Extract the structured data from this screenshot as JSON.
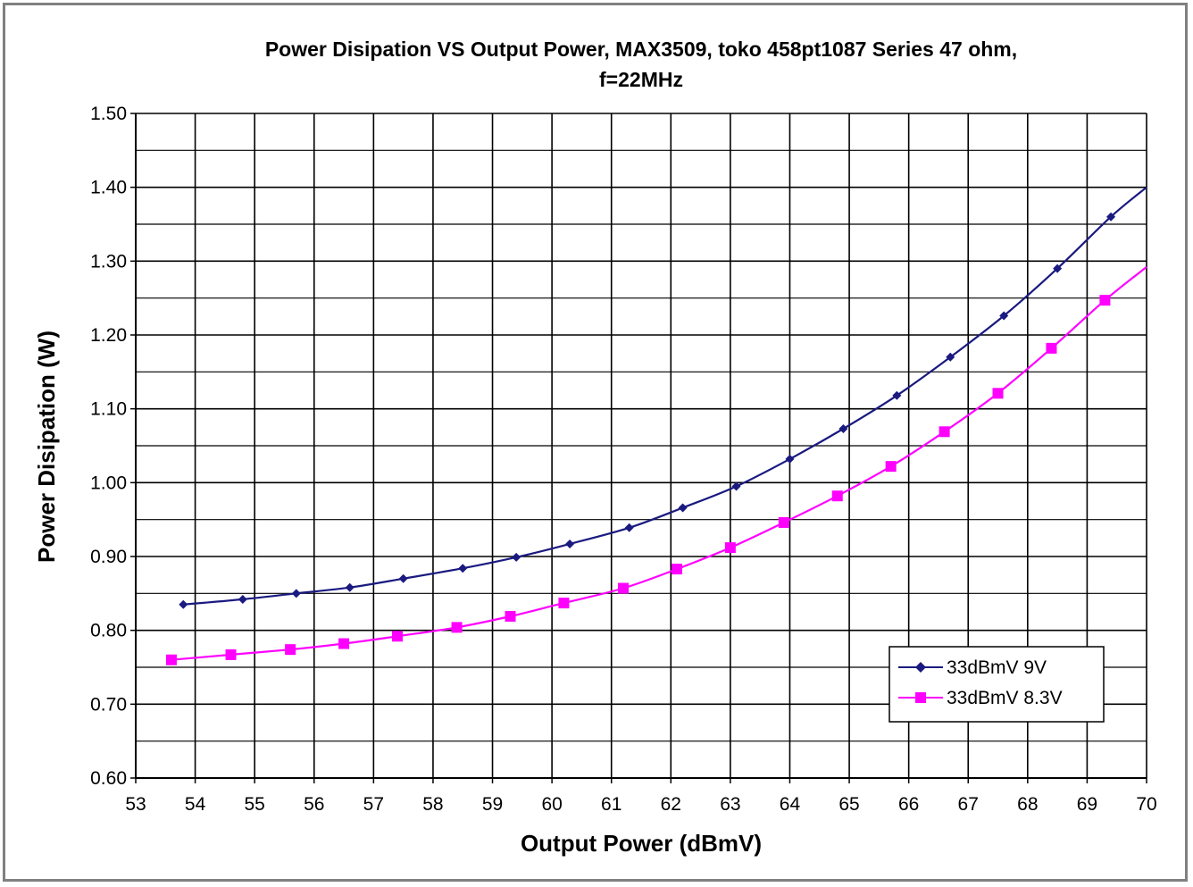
{
  "chart_data": {
    "type": "line",
    "title_line1": "Power Disipation VS Output Power, MAX3509, toko 458pt1087 Series 47 ohm,",
    "title_line2": "f=22MHz",
    "xlabel": "Output Power (dBmV)",
    "ylabel": "Power Disipation (W)",
    "xlim": [
      53,
      70
    ],
    "ylim": [
      0.6,
      1.5
    ],
    "x_ticks": [
      "53",
      "54",
      "55",
      "56",
      "57",
      "58",
      "59",
      "60",
      "61",
      "62",
      "63",
      "64",
      "65",
      "66",
      "67",
      "68",
      "69",
      "70"
    ],
    "y_ticks": [
      "0.60",
      "0.70",
      "0.80",
      "0.90",
      "1.00",
      "1.10",
      "1.20",
      "1.30",
      "1.40",
      "1.50"
    ],
    "grid": true,
    "legend_position": "bottom-right",
    "series": [
      {
        "name": "33dBmV 9V",
        "color": "#1a1a80",
        "marker": "diamond",
        "x": [
          53.8,
          54.8,
          55.7,
          56.6,
          57.5,
          58.5,
          59.4,
          60.3,
          61.3,
          62.2,
          63.1,
          64.0,
          64.9,
          65.8,
          66.7,
          67.6,
          68.5,
          69.4,
          70.0
        ],
        "y": [
          0.835,
          0.842,
          0.85,
          0.858,
          0.87,
          0.884,
          0.899,
          0.917,
          0.939,
          0.966,
          0.995,
          1.032,
          1.073,
          1.118,
          1.17,
          1.226,
          1.29,
          1.36,
          1.4
        ]
      },
      {
        "name": "33dBmV 8.3V",
        "color": "#ff00ff",
        "marker": "square",
        "x": [
          53.6,
          54.6,
          55.6,
          56.5,
          57.4,
          58.4,
          59.3,
          60.2,
          61.2,
          62.1,
          63.0,
          63.9,
          64.8,
          65.7,
          66.6,
          67.5,
          68.4,
          69.3,
          70.0
        ],
        "y": [
          0.76,
          0.767,
          0.774,
          0.782,
          0.792,
          0.804,
          0.819,
          0.837,
          0.857,
          0.883,
          0.912,
          0.946,
          0.982,
          1.022,
          1.069,
          1.121,
          1.182,
          1.247,
          1.292
        ]
      }
    ]
  }
}
